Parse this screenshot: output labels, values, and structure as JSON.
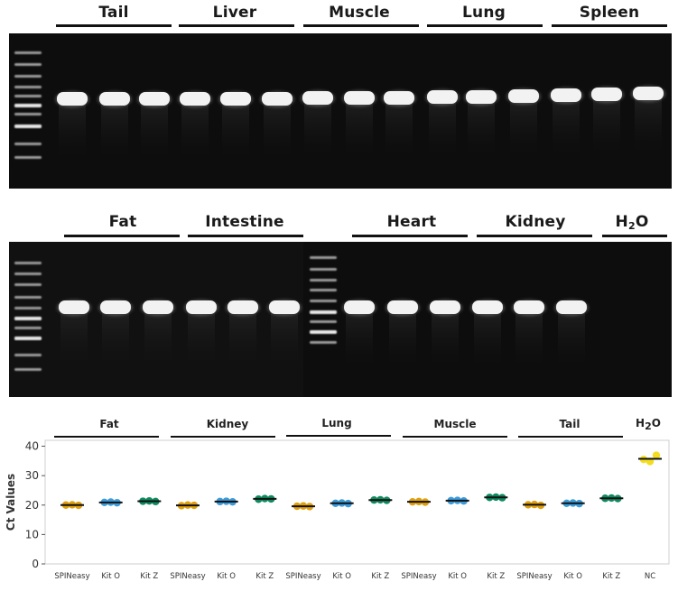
{
  "gel1": {
    "groups": [
      {
        "label": "Tail"
      },
      {
        "label": "Liver"
      },
      {
        "label": "Muscle"
      },
      {
        "label": "Lung"
      },
      {
        "label": "Spleen"
      }
    ]
  },
  "gel2": {
    "groups": [
      {
        "label": "Fat"
      },
      {
        "label": "Intestine"
      },
      {
        "label": "Heart"
      },
      {
        "label": "Kidney"
      },
      {
        "label_main": "H",
        "label_sub": "2",
        "label_end": "O"
      }
    ]
  },
  "chart": {
    "groups": [
      "Fat",
      "Kidney",
      "Lung",
      "Muscle",
      "Tail"
    ],
    "nc_group": {
      "main": "H",
      "sub": "2",
      "end": "O"
    }
  },
  "chart_data": {
    "type": "scatter",
    "ylabel": "Ct Values",
    "ylim": [
      0,
      42
    ],
    "yticks": [
      0,
      10,
      20,
      30,
      40
    ],
    "grid": false,
    "categories": [
      "SPINeasy",
      "Kit O",
      "Kit Z",
      "SPINeasy",
      "Kit O",
      "Kit Z",
      "SPINeasy",
      "Kit O",
      "Kit Z",
      "SPINeasy",
      "Kit O",
      "Kit Z",
      "SPINeasy",
      "Kit O",
      "Kit Z",
      "NC"
    ],
    "colors": {
      "SPINeasy": "#e0a00c",
      "Kit O": "#3b9ad9",
      "Kit Z": "#0f8a5f",
      "NC": "#f2dd20"
    },
    "series": [
      {
        "tissue": "Fat",
        "method": "SPINeasy",
        "points": [
          20.0,
          20.1,
          19.9
        ],
        "mean": 20.0
      },
      {
        "tissue": "Fat",
        "method": "Kit O",
        "points": [
          20.9,
          21.0,
          20.8
        ],
        "mean": 20.9
      },
      {
        "tissue": "Fat",
        "method": "Kit Z",
        "points": [
          21.3,
          21.4,
          21.2
        ],
        "mean": 21.3
      },
      {
        "tissue": "Kidney",
        "method": "SPINeasy",
        "points": [
          19.8,
          20.0,
          19.9
        ],
        "mean": 19.9
      },
      {
        "tissue": "Kidney",
        "method": "Kit O",
        "points": [
          21.2,
          21.3,
          21.1
        ],
        "mean": 21.2
      },
      {
        "tissue": "Kidney",
        "method": "Kit Z",
        "points": [
          22.0,
          22.2,
          22.1
        ],
        "mean": 22.1
      },
      {
        "tissue": "Lung",
        "method": "SPINeasy",
        "points": [
          19.6,
          19.7,
          19.5
        ],
        "mean": 19.6
      },
      {
        "tissue": "Lung",
        "method": "Kit O",
        "points": [
          20.6,
          20.7,
          20.5
        ],
        "mean": 20.6
      },
      {
        "tissue": "Lung",
        "method": "Kit Z",
        "points": [
          21.7,
          21.8,
          21.6
        ],
        "mean": 21.7
      },
      {
        "tissue": "Muscle",
        "method": "SPINeasy",
        "points": [
          21.1,
          21.2,
          21.0
        ],
        "mean": 21.1
      },
      {
        "tissue": "Muscle",
        "method": "Kit O",
        "points": [
          21.5,
          21.6,
          21.4
        ],
        "mean": 21.5
      },
      {
        "tissue": "Muscle",
        "method": "Kit Z",
        "points": [
          22.6,
          22.7,
          22.5
        ],
        "mean": 22.6
      },
      {
        "tissue": "Tail",
        "method": "SPINeasy",
        "points": [
          20.1,
          20.2,
          19.9
        ],
        "mean": 20.1
      },
      {
        "tissue": "Tail",
        "method": "Kit O",
        "points": [
          20.6,
          20.7,
          20.5
        ],
        "mean": 20.6
      },
      {
        "tissue": "Tail",
        "method": "Kit Z",
        "points": [
          22.3,
          22.4,
          22.2
        ],
        "mean": 22.3
      },
      {
        "tissue": "H2O",
        "method": "NC",
        "points": [
          35.5,
          34.8,
          36.9
        ],
        "mean": 35.7
      }
    ]
  }
}
